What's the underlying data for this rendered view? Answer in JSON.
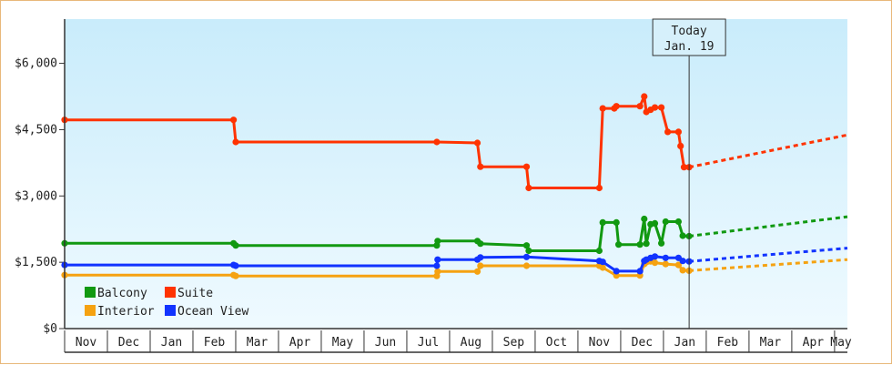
{
  "chart_data": {
    "type": "line",
    "title": "",
    "xlabel": "",
    "ylabel": "",
    "ylim": [
      0,
      7000
    ],
    "yticks": [
      {
        "value": 0,
        "label": "$0"
      },
      {
        "value": 1500,
        "label": "$1,500"
      },
      {
        "value": 3000,
        "label": "$3,000"
      },
      {
        "value": 4500,
        "label": "$4,500"
      },
      {
        "value": 6000,
        "label": "$6,000"
      }
    ],
    "x_units": "months elapsed from start of Nov",
    "xlim": [
      0,
      18.3
    ],
    "months": [
      "Nov",
      "Dec",
      "Jan",
      "Feb",
      "Mar",
      "Apr",
      "May",
      "Jun",
      "Jul",
      "Aug",
      "Sep",
      "Oct",
      "Nov",
      "Dec",
      "Jan",
      "Feb",
      "Mar",
      "Apr",
      "May"
    ],
    "today": {
      "line1": "Today",
      "line2": "Jan. 19",
      "x": 14.6
    },
    "legend_position": "bottom-left",
    "series": [
      {
        "name": "Suite",
        "color": "#ff3300",
        "points": [
          [
            0,
            4720
          ],
          [
            3.95,
            4720
          ],
          [
            4.0,
            4220
          ],
          [
            8.7,
            4220
          ],
          [
            9.65,
            4200
          ],
          [
            9.72,
            3660
          ],
          [
            10.8,
            3660
          ],
          [
            10.85,
            3180
          ],
          [
            12.5,
            3180
          ],
          [
            12.58,
            4980
          ],
          [
            12.85,
            4980
          ],
          [
            12.9,
            5030
          ],
          [
            13.45,
            5030
          ],
          [
            13.55,
            5250
          ],
          [
            13.6,
            4900
          ],
          [
            13.7,
            4950
          ],
          [
            13.8,
            5000
          ],
          [
            13.95,
            5000
          ],
          [
            14.1,
            4450
          ],
          [
            14.35,
            4450
          ],
          [
            14.4,
            4130
          ],
          [
            14.48,
            3650
          ],
          [
            14.6,
            3650
          ]
        ],
        "forecast": [
          [
            14.6,
            3650
          ],
          [
            18.3,
            4380
          ]
        ]
      },
      {
        "name": "Balcony",
        "color": "#119911",
        "points": [
          [
            0,
            1930
          ],
          [
            3.95,
            1930
          ],
          [
            4.0,
            1880
          ],
          [
            8.7,
            1880
          ],
          [
            8.72,
            1980
          ],
          [
            9.65,
            1980
          ],
          [
            9.72,
            1920
          ],
          [
            10.8,
            1880
          ],
          [
            10.85,
            1760
          ],
          [
            12.5,
            1760
          ],
          [
            12.58,
            2400
          ],
          [
            12.9,
            2400
          ],
          [
            12.95,
            1900
          ],
          [
            13.45,
            1900
          ],
          [
            13.55,
            2480
          ],
          [
            13.6,
            1920
          ],
          [
            13.7,
            2360
          ],
          [
            13.8,
            2380
          ],
          [
            13.95,
            1930
          ],
          [
            14.05,
            2420
          ],
          [
            14.35,
            2420
          ],
          [
            14.45,
            2100
          ],
          [
            14.6,
            2090
          ]
        ],
        "forecast": [
          [
            14.6,
            2090
          ],
          [
            18.3,
            2530
          ]
        ]
      },
      {
        "name": "Interior",
        "color": "#f5a211",
        "points": [
          [
            0,
            1210
          ],
          [
            3.95,
            1210
          ],
          [
            4.0,
            1190
          ],
          [
            8.7,
            1190
          ],
          [
            8.72,
            1290
          ],
          [
            9.65,
            1290
          ],
          [
            9.72,
            1420
          ],
          [
            10.8,
            1420
          ],
          [
            12.5,
            1420
          ],
          [
            12.58,
            1380
          ],
          [
            12.9,
            1200
          ],
          [
            13.45,
            1200
          ],
          [
            13.55,
            1460
          ],
          [
            13.6,
            1500
          ],
          [
            13.7,
            1520
          ],
          [
            13.8,
            1490
          ],
          [
            14.05,
            1460
          ],
          [
            14.35,
            1440
          ],
          [
            14.45,
            1320
          ],
          [
            14.6,
            1310
          ]
        ],
        "forecast": [
          [
            14.6,
            1310
          ],
          [
            18.3,
            1560
          ]
        ]
      },
      {
        "name": "Ocean View",
        "color": "#1133ff",
        "points": [
          [
            0,
            1440
          ],
          [
            3.95,
            1440
          ],
          [
            4.0,
            1420
          ],
          [
            8.7,
            1420
          ],
          [
            8.72,
            1560
          ],
          [
            9.65,
            1560
          ],
          [
            9.72,
            1610
          ],
          [
            10.8,
            1620
          ],
          [
            12.5,
            1530
          ],
          [
            12.58,
            1510
          ],
          [
            12.9,
            1300
          ],
          [
            13.45,
            1300
          ],
          [
            13.55,
            1530
          ],
          [
            13.6,
            1560
          ],
          [
            13.7,
            1600
          ],
          [
            13.8,
            1630
          ],
          [
            14.05,
            1600
          ],
          [
            14.35,
            1600
          ],
          [
            14.45,
            1530
          ],
          [
            14.6,
            1520
          ]
        ],
        "forecast": [
          [
            14.6,
            1520
          ],
          [
            18.3,
            1820
          ]
        ]
      }
    ]
  }
}
